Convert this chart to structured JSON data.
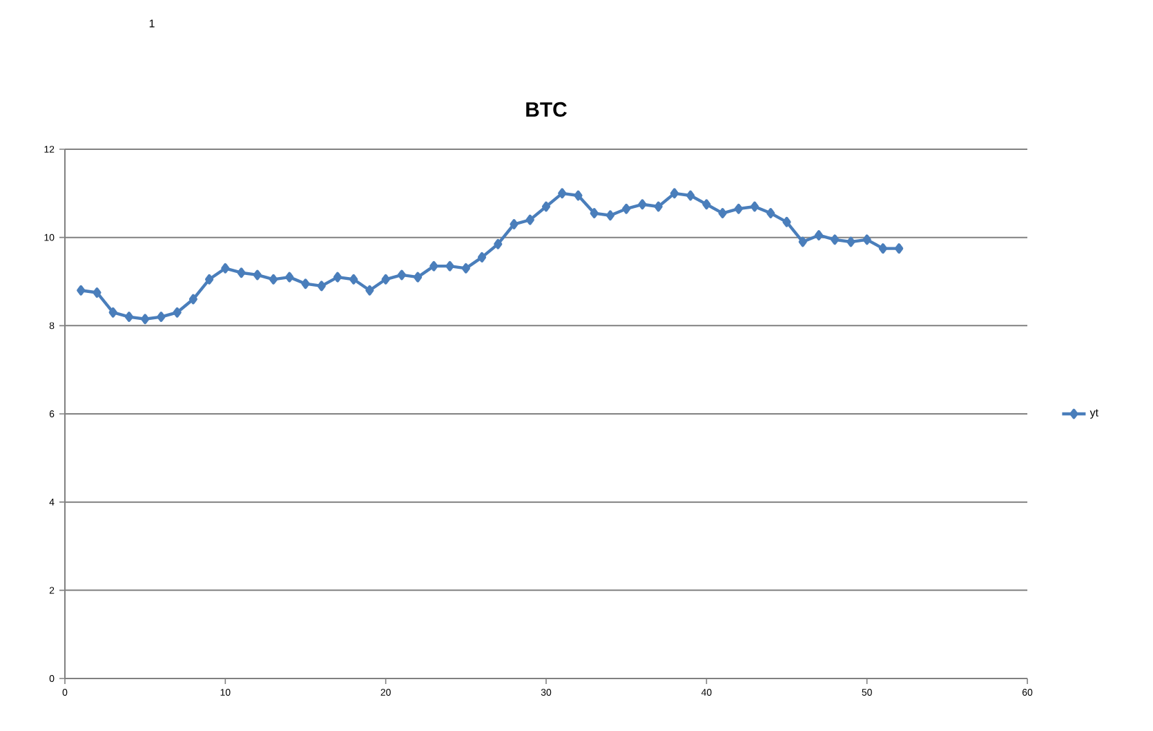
{
  "chart_data": {
    "type": "line",
    "title": "BTC",
    "x": [
      1,
      2,
      3,
      4,
      5,
      6,
      7,
      8,
      9,
      10,
      11,
      12,
      13,
      14,
      15,
      16,
      17,
      18,
      19,
      20,
      21,
      22,
      23,
      24,
      25,
      26,
      27,
      28,
      29,
      30,
      31,
      32,
      33,
      34,
      35,
      36,
      37,
      38,
      39,
      40,
      41,
      42,
      43,
      44,
      45,
      46,
      47,
      48,
      49,
      50,
      51,
      52
    ],
    "series": [
      {
        "name": "yt",
        "color": "#4a7ebb",
        "values": [
          8.8,
          8.75,
          8.3,
          8.2,
          8.15,
          8.2,
          8.3,
          8.6,
          9.05,
          9.3,
          9.2,
          9.15,
          9.05,
          9.1,
          8.95,
          8.9,
          9.1,
          9.05,
          8.8,
          9.05,
          9.15,
          9.1,
          9.35,
          9.35,
          9.3,
          9.55,
          9.85,
          10.3,
          10.4,
          10.7,
          11.0,
          10.95,
          10.55,
          10.5,
          10.65,
          10.75,
          10.7,
          11.0,
          10.95,
          10.75,
          10.55,
          10.65,
          10.7,
          10.55,
          10.35,
          9.9,
          10.05,
          9.95,
          9.9,
          9.95,
          9.75,
          9.75
        ]
      }
    ],
    "xlim": [
      0,
      60
    ],
    "ylim": [
      0,
      12
    ],
    "xticks": [
      0,
      10,
      20,
      30,
      40,
      50,
      60
    ],
    "yticks": [
      0,
      2,
      4,
      6,
      8,
      10,
      12
    ],
    "grid": "y",
    "legend": "right",
    "marker": "diamond",
    "annotations": [
      "1"
    ]
  }
}
